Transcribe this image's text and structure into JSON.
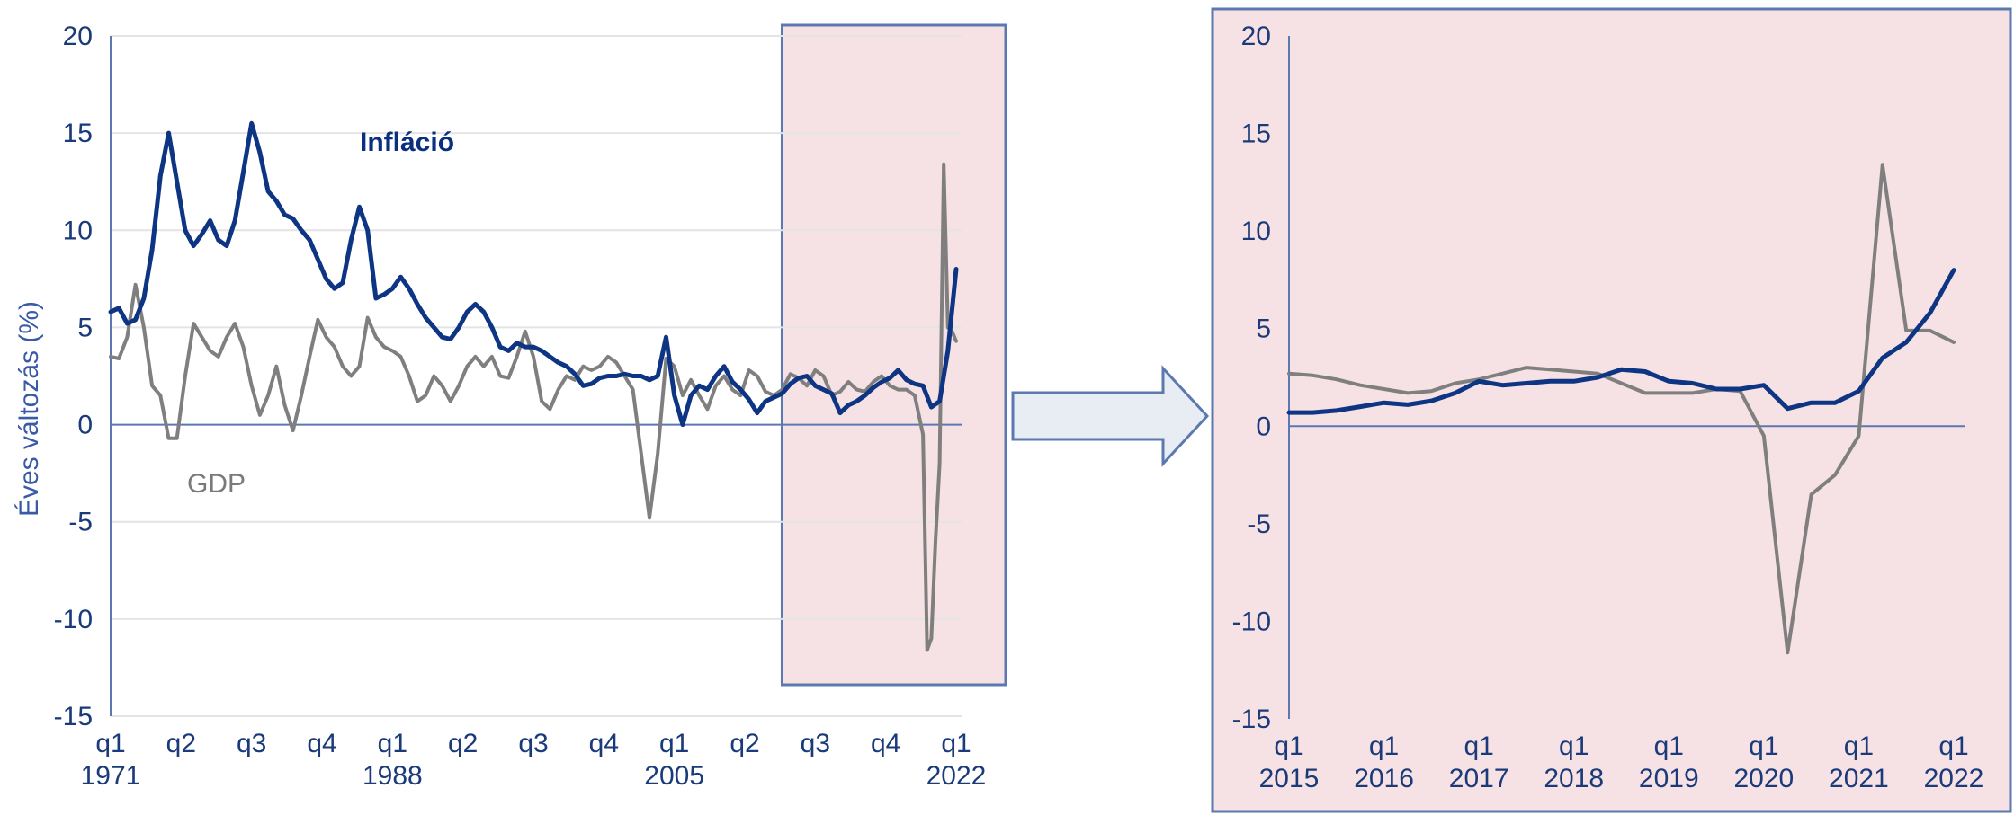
{
  "colors": {
    "inflation": "#0d3584",
    "gdp": "#7f7f7f",
    "axis": "#5b78b0",
    "grid": "#e4e4e4",
    "highlight_fill": "#f6e2e4",
    "highlight_border": "#5b78b0",
    "arrow_fill": "#e8edf3",
    "arrow_border": "#5b78b0"
  },
  "chart_data": [
    {
      "type": "line",
      "ylabel": "Éves változás (%)",
      "ylim": [
        -15,
        20
      ],
      "yticks": [
        "20",
        "15",
        "10",
        "5",
        "0",
        "-5",
        "-10",
        "-15"
      ],
      "xlim": [
        1971.0,
        2022.0
      ],
      "xticks": [
        {
          "q": "q1",
          "year": "1971"
        },
        {
          "q": "q2",
          "year": ""
        },
        {
          "q": "q3",
          "year": ""
        },
        {
          "q": "q4",
          "year": ""
        },
        {
          "q": "q1",
          "year": "1988"
        },
        {
          "q": "q2",
          "year": ""
        },
        {
          "q": "q3",
          "year": ""
        },
        {
          "q": "q4",
          "year": ""
        },
        {
          "q": "q1",
          "year": "2005"
        },
        {
          "q": "q2",
          "year": ""
        },
        {
          "q": "q3",
          "year": ""
        },
        {
          "q": "q4",
          "year": ""
        },
        {
          "q": "q1",
          "year": "2022"
        }
      ],
      "grid": true,
      "annotations": {
        "inflation": "Infláció",
        "gdp": "GDP"
      },
      "highlight_range": [
        2011.5,
        2022.0
      ],
      "series": [
        {
          "name": "Infláció",
          "x": [
            1971.0,
            1971.5,
            1972.0,
            1972.5,
            1973.0,
            1973.5,
            1974.0,
            1974.5,
            1975.0,
            1975.5,
            1976.0,
            1976.5,
            1977.0,
            1977.5,
            1978.0,
            1978.5,
            1979.0,
            1979.5,
            1980.0,
            1980.5,
            1981.0,
            1981.5,
            1982.0,
            1982.5,
            1983.0,
            1983.5,
            1984.0,
            1984.5,
            1985.0,
            1985.5,
            1986.0,
            1986.5,
            1987.0,
            1987.5,
            1988.0,
            1988.5,
            1989.0,
            1989.5,
            1990.0,
            1990.5,
            1991.0,
            1991.5,
            1992.0,
            1992.5,
            1993.0,
            1993.5,
            1994.0,
            1994.5,
            1995.0,
            1995.5,
            1996.0,
            1996.5,
            1997.0,
            1997.5,
            1998.0,
            1998.5,
            1999.0,
            1999.5,
            2000.0,
            2000.5,
            2001.0,
            2001.5,
            2002.0,
            2002.5,
            2003.0,
            2003.5,
            2004.0,
            2004.5,
            2005.0,
            2005.5,
            2006.0,
            2006.5,
            2007.0,
            2007.5,
            2008.0,
            2008.5,
            2009.0,
            2009.5,
            2010.0,
            2010.5,
            2011.0,
            2011.5,
            2012.0,
            2012.5,
            2013.0,
            2013.5,
            2014.0,
            2014.5,
            2015.0,
            2015.5,
            2016.0,
            2016.5,
            2017.0,
            2017.5,
            2018.0,
            2018.5,
            2019.0,
            2019.5,
            2020.0,
            2020.5,
            2021.0,
            2021.5,
            2022.0
          ],
          "values": [
            5.8,
            6.0,
            5.2,
            5.4,
            6.5,
            9.0,
            12.8,
            15.0,
            12.5,
            10.0,
            9.2,
            9.8,
            10.5,
            9.5,
            9.2,
            10.5,
            13.0,
            15.5,
            14.0,
            12.0,
            11.5,
            10.8,
            10.6,
            10.0,
            9.5,
            8.5,
            7.5,
            7.0,
            7.3,
            9.5,
            11.2,
            10.0,
            6.5,
            6.7,
            7.0,
            7.6,
            7.0,
            6.2,
            5.5,
            5.0,
            4.5,
            4.4,
            5.0,
            5.8,
            6.2,
            5.8,
            5.0,
            4.0,
            3.8,
            4.2,
            4.0,
            4.0,
            3.8,
            3.5,
            3.2,
            3.0,
            2.6,
            2.0,
            2.1,
            2.4,
            2.5,
            2.5,
            2.6,
            2.5,
            2.5,
            2.3,
            2.5,
            4.5,
            1.5,
            0.0,
            1.5,
            2.0,
            1.8,
            2.5,
            3.0,
            2.2,
            1.8,
            1.3,
            0.6,
            1.2,
            1.4,
            1.6,
            2.1,
            2.4,
            2.5,
            2.0,
            1.8,
            1.6,
            0.6,
            1.0,
            1.2,
            1.5,
            1.9,
            2.2,
            2.4,
            2.8,
            2.3,
            2.1,
            2.0,
            0.9,
            1.2,
            3.8,
            8.0
          ]
        },
        {
          "name": "GDP",
          "x": [
            1971.0,
            1971.5,
            1972.0,
            1972.5,
            1973.0,
            1973.5,
            1974.0,
            1974.5,
            1975.0,
            1975.5,
            1976.0,
            1976.5,
            1977.0,
            1977.5,
            1978.0,
            1978.5,
            1979.0,
            1979.5,
            1980.0,
            1980.5,
            1981.0,
            1981.5,
            1982.0,
            1982.5,
            1983.0,
            1983.5,
            1984.0,
            1984.5,
            1985.0,
            1985.5,
            1986.0,
            1986.5,
            1987.0,
            1987.5,
            1988.0,
            1988.5,
            1989.0,
            1989.5,
            1990.0,
            1990.5,
            1991.0,
            1991.5,
            1992.0,
            1992.5,
            1993.0,
            1993.5,
            1994.0,
            1994.5,
            1995.0,
            1995.5,
            1996.0,
            1996.5,
            1997.0,
            1997.5,
            1998.0,
            1998.5,
            1999.0,
            1999.5,
            2000.0,
            2000.5,
            2001.0,
            2001.5,
            2002.0,
            2002.5,
            2003.0,
            2003.5,
            2004.0,
            2004.5,
            2005.0,
            2005.5,
            2006.0,
            2006.5,
            2007.0,
            2007.5,
            2008.0,
            2008.5,
            2009.0,
            2009.5,
            2010.0,
            2010.5,
            2011.0,
            2011.5,
            2012.0,
            2012.5,
            2013.0,
            2013.5,
            2014.0,
            2014.5,
            2015.0,
            2015.5,
            2016.0,
            2016.5,
            2017.0,
            2017.5,
            2018.0,
            2018.5,
            2019.0,
            2019.5,
            2020.0,
            2020.25,
            2020.5,
            2020.75,
            2021.0,
            2021.25,
            2021.5,
            2021.75,
            2022.0
          ],
          "values": [
            3.5,
            3.4,
            4.5,
            7.2,
            5.0,
            2.0,
            1.5,
            -0.7,
            -0.7,
            2.5,
            5.2,
            4.5,
            3.8,
            3.5,
            4.5,
            5.2,
            4.0,
            2.0,
            0.5,
            1.5,
            3.0,
            1.0,
            -0.3,
            1.5,
            3.5,
            5.4,
            4.5,
            4.0,
            3.0,
            2.5,
            3.0,
            5.5,
            4.5,
            4.0,
            3.8,
            3.5,
            2.5,
            1.2,
            1.5,
            2.5,
            2.0,
            1.2,
            2.0,
            3.0,
            3.5,
            3.0,
            3.5,
            2.5,
            2.4,
            3.5,
            4.8,
            3.5,
            1.2,
            0.8,
            1.8,
            2.5,
            2.3,
            3.0,
            2.8,
            3.0,
            3.5,
            3.2,
            2.5,
            1.8,
            -1.5,
            -4.8,
            -1.5,
            3.4,
            3.0,
            1.5,
            2.3,
            1.5,
            0.8,
            2.0,
            2.5,
            1.8,
            1.5,
            2.8,
            2.5,
            1.7,
            1.5,
            1.8,
            2.6,
            2.4,
            2.0,
            2.8,
            2.5,
            1.5,
            1.7,
            2.2,
            1.8,
            1.7,
            2.2,
            2.5,
            2.0,
            1.8,
            1.8,
            1.5,
            -0.5,
            -11.6,
            -11.0,
            -6.0,
            -2.0,
            13.4,
            5.0,
            4.8,
            4.3
          ]
        }
      ]
    },
    {
      "type": "line",
      "ylabel": "",
      "ylim": [
        -15,
        20
      ],
      "yticks": [
        "20",
        "15",
        "10",
        "5",
        "0",
        "-5",
        "-10",
        "-15"
      ],
      "xlim": [
        2015.0,
        2022.0
      ],
      "xticks": [
        {
          "q": "q1",
          "year": "2015"
        },
        {
          "q": "q1",
          "year": "2016"
        },
        {
          "q": "q1",
          "year": "2017"
        },
        {
          "q": "q1",
          "year": "2018"
        },
        {
          "q": "q1",
          "year": "2019"
        },
        {
          "q": "q1",
          "year": "2020"
        },
        {
          "q": "q1",
          "year": "2021"
        },
        {
          "q": "q1",
          "year": "2022"
        }
      ],
      "grid": false,
      "series": [
        {
          "name": "Infláció",
          "x": [
            2015.0,
            2015.25,
            2015.5,
            2015.75,
            2016.0,
            2016.25,
            2016.5,
            2016.75,
            2017.0,
            2017.25,
            2017.5,
            2017.75,
            2018.0,
            2018.25,
            2018.5,
            2018.75,
            2019.0,
            2019.25,
            2019.5,
            2019.75,
            2020.0,
            2020.25,
            2020.5,
            2020.75,
            2021.0,
            2021.25,
            2021.5,
            2021.75,
            2022.0
          ],
          "values": [
            0.7,
            0.7,
            0.8,
            1.0,
            1.2,
            1.1,
            1.3,
            1.7,
            2.3,
            2.1,
            2.2,
            2.3,
            2.3,
            2.5,
            2.9,
            2.8,
            2.3,
            2.2,
            1.9,
            1.9,
            2.1,
            0.9,
            1.2,
            1.2,
            1.8,
            3.5,
            4.3,
            5.8,
            8.0
          ]
        },
        {
          "name": "GDP",
          "x": [
            2015.0,
            2015.25,
            2015.5,
            2015.75,
            2016.0,
            2016.25,
            2016.5,
            2016.75,
            2017.0,
            2017.25,
            2017.5,
            2017.75,
            2018.0,
            2018.25,
            2018.5,
            2018.75,
            2019.0,
            2019.25,
            2019.5,
            2019.75,
            2020.0,
            2020.25,
            2020.5,
            2020.75,
            2021.0,
            2021.25,
            2021.5,
            2021.75,
            2022.0
          ],
          "values": [
            2.7,
            2.6,
            2.4,
            2.1,
            1.9,
            1.7,
            1.8,
            2.2,
            2.4,
            2.7,
            3.0,
            2.9,
            2.8,
            2.7,
            2.2,
            1.7,
            1.7,
            1.7,
            1.9,
            1.8,
            -0.5,
            -11.6,
            -3.5,
            -2.5,
            -0.5,
            13.4,
            4.9,
            4.9,
            4.3
          ]
        }
      ]
    }
  ]
}
